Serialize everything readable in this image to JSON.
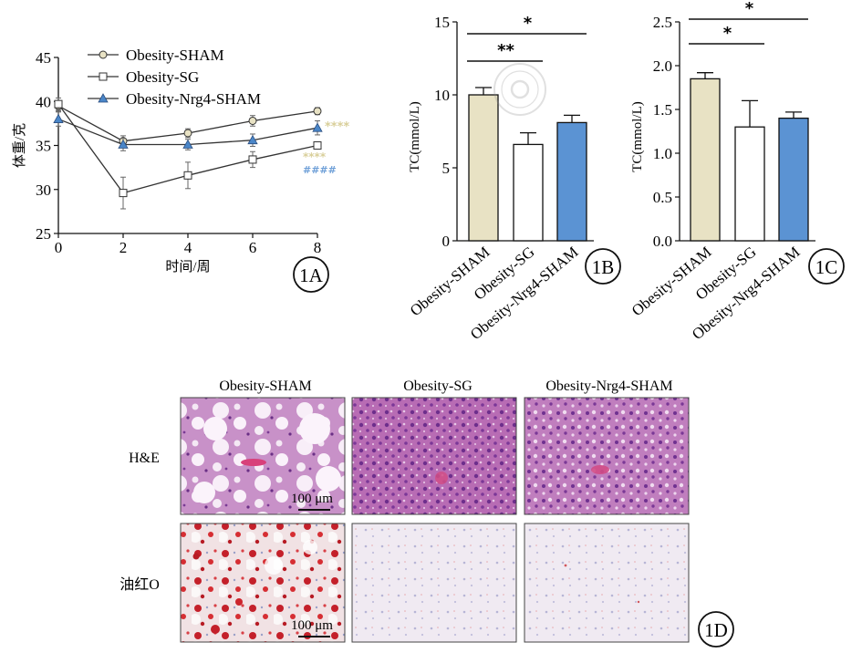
{
  "chart_data": [
    {
      "panel": "1A",
      "type": "line",
      "xlabel": "时间/周",
      "ylabel": "体重/克",
      "x": [
        0,
        2,
        4,
        6,
        8
      ],
      "xticks": [
        "0",
        "2",
        "4",
        "6",
        "8"
      ],
      "yticks": [
        "25",
        "30",
        "35",
        "40",
        "45"
      ],
      "xlim": [
        0,
        8
      ],
      "ylim": [
        25,
        45
      ],
      "series": [
        {
          "name": "Obesity-SHAM",
          "marker": "circle",
          "fill": "#e8e2c4",
          "values": [
            39.5,
            35.5,
            36.4,
            37.8,
            38.9
          ],
          "err": [
            0.6,
            0.6,
            0.5,
            0.6,
            0.4
          ]
        },
        {
          "name": "Obesity-SG",
          "marker": "square",
          "fill": "#ffffff",
          "values": [
            39.7,
            29.6,
            31.6,
            33.4,
            35.0
          ],
          "err": [
            0.7,
            1.8,
            1.5,
            0.9,
            0.4
          ]
        },
        {
          "name": "Obesity-Nrg4-SHAM",
          "marker": "triangle",
          "fill": "#4a86c8",
          "values": [
            38.0,
            35.1,
            35.1,
            35.6,
            37.0
          ],
          "err": [
            0.8,
            0.7,
            0.6,
            0.7,
            0.8
          ]
        }
      ],
      "annotations": [
        {
          "text": "****",
          "color": "#d9cf9a"
        },
        {
          "text": "****",
          "color": "#d9cf9a"
        },
        {
          "text": "####",
          "color": "#6fa0d8"
        }
      ]
    },
    {
      "panel": "1B",
      "type": "bar",
      "ylabel": "TC(mmol/L)",
      "categories": [
        "Obesity-SHAM",
        "Obesity-SG",
        "Obesity-Nrg4-SHAM"
      ],
      "values": [
        10.0,
        6.6,
        8.1
      ],
      "err": [
        0.5,
        0.8,
        0.5
      ],
      "colors": [
        "#e8e2c4",
        "#ffffff",
        "#5b93d3"
      ],
      "ylim": [
        0,
        15
      ],
      "yticks": [
        "0",
        "5",
        "10",
        "15"
      ],
      "significance": [
        {
          "from": 0,
          "to": 1,
          "label": "**"
        },
        {
          "from": 0,
          "to": 2,
          "label": "*"
        }
      ]
    },
    {
      "panel": "1C",
      "type": "bar",
      "ylabel": "TC(mmol/L)",
      "categories": [
        "Obesity-SHAM",
        "Obesity-SG",
        "Obesity-Nrg4-SHAM"
      ],
      "values": [
        1.85,
        1.3,
        1.4
      ],
      "err": [
        0.07,
        0.3,
        0.07
      ],
      "colors": [
        "#e8e2c4",
        "#ffffff",
        "#5b93d3"
      ],
      "ylim": [
        0,
        2.5
      ],
      "yticks": [
        "0.0",
        "0.5",
        "1.0",
        "1.5",
        "2.0",
        "2.5"
      ],
      "significance": [
        {
          "from": 0,
          "to": 1,
          "label": "*"
        },
        {
          "from": 0,
          "to": 2,
          "label": "*"
        }
      ]
    }
  ],
  "micrographs": {
    "panel": "1D",
    "columns": [
      "Obesity-SHAM",
      "Obesity-SG",
      "Obesity-Nrg4-SHAM"
    ],
    "rows": [
      "H&E",
      "油红O"
    ],
    "scale_bar": "100 μm"
  },
  "panel_labels": [
    "1A",
    "1B",
    "1C",
    "1D"
  ]
}
